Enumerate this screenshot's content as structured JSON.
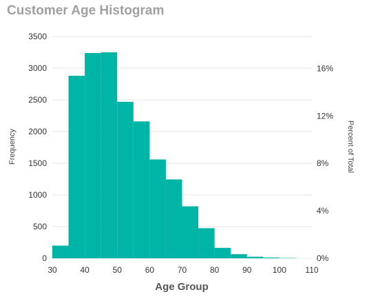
{
  "chart_data": {
    "type": "bar",
    "title": "Customer Age Histogram",
    "xlabel": "Age Group",
    "ylabel": "Frequency",
    "y2label": "Percent of Total",
    "bin_edges": [
      30,
      35,
      40,
      45,
      50,
      55,
      60,
      65,
      70,
      75,
      80,
      85,
      90,
      95,
      100,
      105
    ],
    "values": [
      200,
      2880,
      3240,
      3250,
      2470,
      2160,
      1560,
      1245,
      820,
      475,
      165,
      65,
      25,
      12,
      5
    ],
    "xlim": [
      30,
      110
    ],
    "ylim": [
      0,
      3500
    ],
    "x_ticks": [
      30,
      40,
      50,
      60,
      70,
      80,
      90,
      100,
      110
    ],
    "y_ticks": [
      0,
      500,
      1000,
      1500,
      2000,
      2500,
      3000,
      3500
    ],
    "y2_ticks": [
      0,
      4,
      8,
      12,
      16
    ],
    "y2_tick_labels": [
      "0%",
      "4%",
      "8%",
      "12%",
      "16%"
    ],
    "y2lim": [
      0,
      18.7
    ],
    "grid": true,
    "legend": "none",
    "colors": {
      "bar": "#00b5a5",
      "title": "#a0a0a0",
      "tick_label": "#333333",
      "axis_title": "#444444",
      "x_axis_title": "#555555",
      "grid": "#e3e3e3"
    }
  }
}
